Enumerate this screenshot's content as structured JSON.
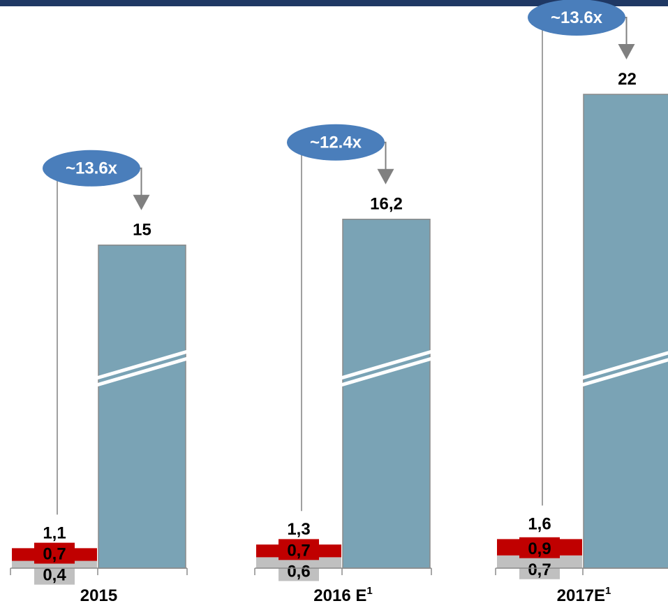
{
  "colors": {
    "header_bar": "#1f3864",
    "big_bar": "#7aa3b5",
    "big_bar_edge": "#8a8a8a",
    "red_segment": "#c00000",
    "gray_segment": "#c0c0c0",
    "bubble": "#4a7ebb",
    "bubble_text": "#ffffff",
    "connector": "#808080",
    "axis": "#8a8a8a",
    "label_text": "#000000"
  },
  "chart_data": {
    "type": "bar",
    "title": "",
    "xlabel": "",
    "ylabel": "",
    "axis_break": true,
    "grid": false,
    "groups": [
      {
        "category": "2015",
        "category_sup": "",
        "small_bar": {
          "total": "1,1",
          "lower": "0,4",
          "upper": "0,7",
          "lower_value": 0.4,
          "upper_value": 0.7
        },
        "big_bar": {
          "label": "15",
          "value": 15
        },
        "multiple": "~13.6x"
      },
      {
        "category": "2016 E",
        "category_sup": "1",
        "small_bar": {
          "total": "1,3",
          "lower": "0,6",
          "upper": "0,7",
          "lower_value": 0.6,
          "upper_value": 0.7
        },
        "big_bar": {
          "label": "16,2",
          "value": 16.2
        },
        "multiple": "~12.4x"
      },
      {
        "category": "2017E",
        "category_sup": "1",
        "small_bar": {
          "total": "1,6",
          "lower": "0,7",
          "upper": "0,9",
          "lower_value": 0.7,
          "upper_value": 0.9
        },
        "big_bar": {
          "label": "22",
          "value": 22
        },
        "multiple": "~13.6x"
      }
    ]
  }
}
